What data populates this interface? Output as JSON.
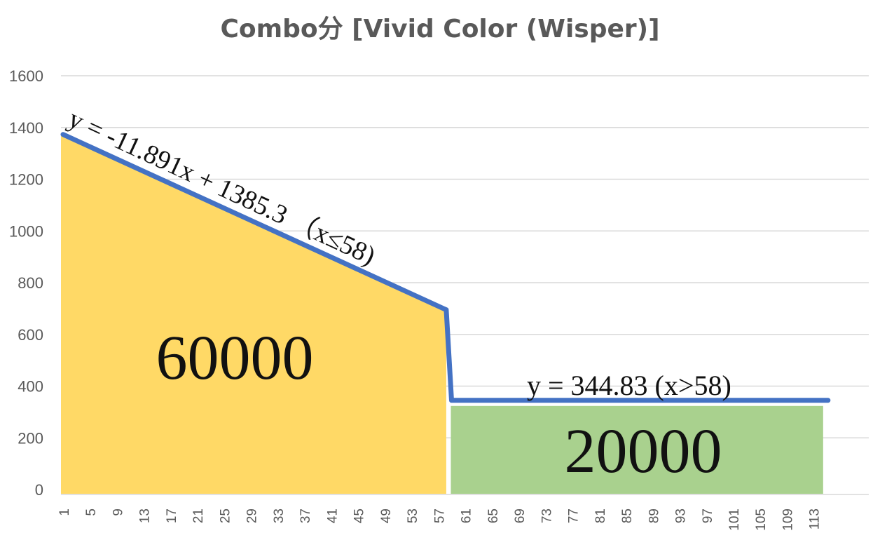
{
  "chart_data": {
    "type": "area",
    "title": "Combo分 [Vivid Color (Wisper)]",
    "xlabel": "",
    "ylabel": "",
    "xlim": [
      1,
      115
    ],
    "ylim": [
      0,
      1600
    ],
    "y_ticks": [
      0,
      200,
      400,
      600,
      800,
      1000,
      1200,
      1400,
      1600
    ],
    "x_tick_labels": [
      1,
      5,
      9,
      13,
      17,
      21,
      25,
      29,
      33,
      37,
      41,
      45,
      49,
      53,
      57,
      61,
      65,
      69,
      73,
      77,
      81,
      85,
      89,
      93,
      97,
      101,
      105,
      109,
      113
    ],
    "grid": "horizontal",
    "series": [
      {
        "color": "#4472C4",
        "points": [
          [
            1,
            1373
          ],
          [
            58,
            695
          ],
          [
            59,
            345
          ],
          [
            115,
            345
          ]
        ]
      }
    ],
    "areas": [
      {
        "from_x": 1,
        "to_x": 58,
        "color": "#FFD966",
        "label": "60000"
      },
      {
        "from_x": 59,
        "to_x": 115,
        "color": "#A9D18E",
        "label": "20000"
      }
    ],
    "annotations": [
      {
        "text": "y = -11.891x + 1385.3 （x≤58)"
      },
      {
        "text": "y = 344.83 (x>58)"
      }
    ]
  }
}
